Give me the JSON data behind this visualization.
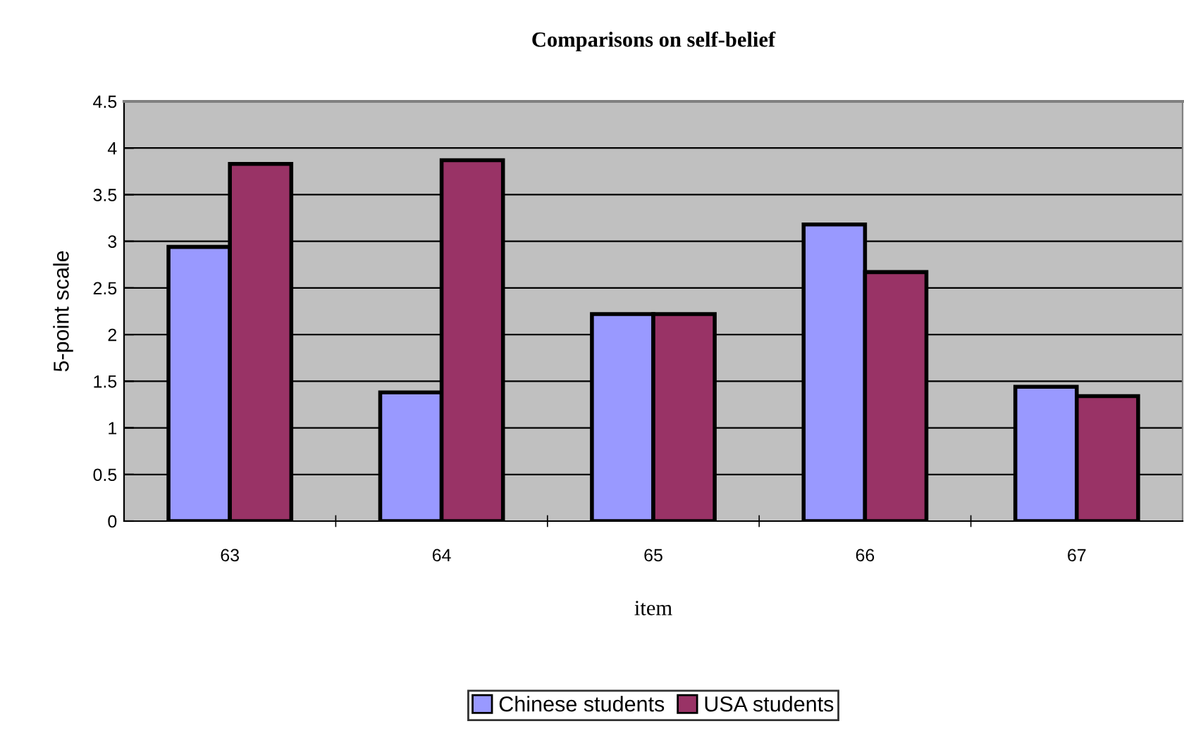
{
  "chart_data": {
    "type": "bar",
    "title": "Comparisons on self-belief",
    "xlabel": "item",
    "ylabel": "5-point scale",
    "categories": [
      "63",
      "64",
      "65",
      "66",
      "67"
    ],
    "series": [
      {
        "name": "Chinese students",
        "color": "#9999ff",
        "values": [
          2.94,
          1.38,
          2.22,
          3.18,
          1.44
        ]
      },
      {
        "name": "USA students",
        "color": "#993366",
        "values": [
          3.83,
          3.87,
          2.22,
          2.67,
          1.34
        ]
      }
    ],
    "ylim": [
      0,
      4.5
    ],
    "yticks": [
      0,
      0.5,
      1,
      1.5,
      2,
      2.5,
      3,
      3.5,
      4,
      4.5
    ],
    "grid": "y",
    "legend": "bottom"
  }
}
